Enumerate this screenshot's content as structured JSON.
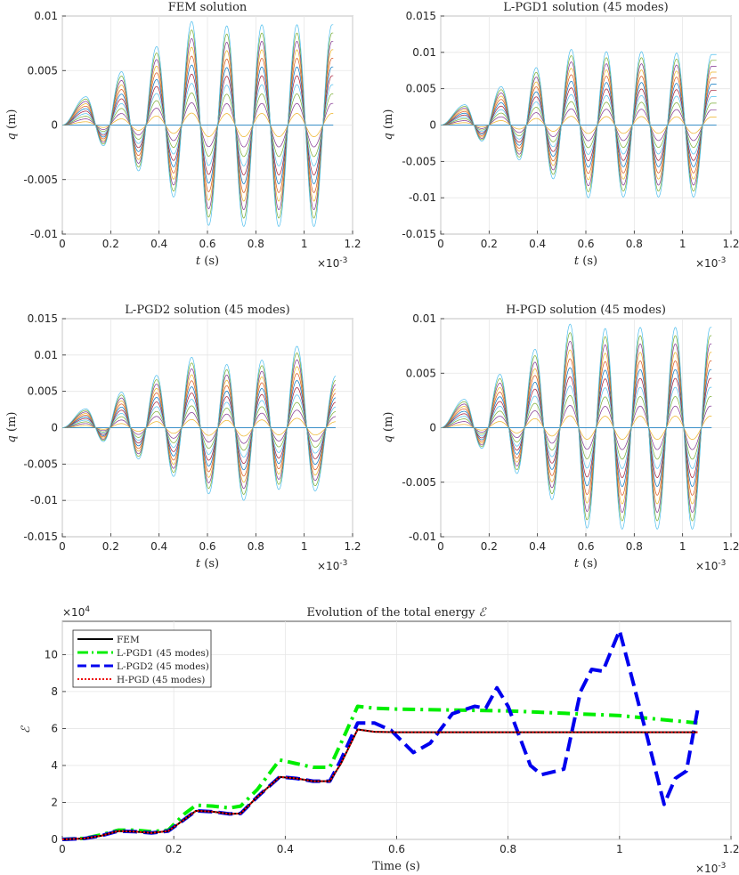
{
  "chart_data": [
    {
      "type": "line",
      "title": "FEM solution",
      "xlabel_var": "t",
      "xlabel_unit": "(s)",
      "ylabel_var": "q",
      "ylabel_unit": "(m)",
      "x_multiplier": "×10",
      "x_exponent": "-3",
      "xlim": [
        0,
        1.2
      ],
      "ylim": [
        -0.01,
        0.01
      ],
      "xticks": [
        0,
        0.2,
        0.4,
        0.6,
        0.8,
        1,
        1.2
      ],
      "yticks": [
        -0.01,
        -0.005,
        0,
        0.005,
        0.01
      ],
      "x_tick_labels": [
        "0",
        "0.2",
        "0.4",
        "0.6",
        "0.8",
        "1",
        "1.2"
      ],
      "y_tick_labels": [
        "-0.01",
        "-0.005",
        "0",
        "0.005",
        "0.01"
      ],
      "x_end": 1.12,
      "series_count": 12,
      "peaks": [
        {
          "t": 0.098,
          "q": 0.0026
        },
        {
          "t": 0.17,
          "q": -0.0019
        },
        {
          "t": 0.245,
          "q": 0.0049
        },
        {
          "t": 0.315,
          "q": -0.0042
        },
        {
          "t": 0.39,
          "q": 0.0072
        },
        {
          "t": 0.46,
          "q": -0.0066
        },
        {
          "t": 0.535,
          "q": 0.0095
        },
        {
          "t": 0.605,
          "q": -0.0092
        },
        {
          "t": 0.68,
          "q": 0.0091
        },
        {
          "t": 0.75,
          "q": -0.0093
        },
        {
          "t": 0.825,
          "q": 0.0092
        },
        {
          "t": 0.895,
          "q": -0.0093
        },
        {
          "t": 0.97,
          "q": 0.0092
        },
        {
          "t": 1.04,
          "q": -0.0093
        },
        {
          "t": 1.115,
          "q": 0.0092
        }
      ]
    },
    {
      "type": "line",
      "title": "L-PGD1 solution (45 modes)",
      "xlabel_var": "t",
      "xlabel_unit": "(s)",
      "ylabel_var": "q",
      "ylabel_unit": "(m)",
      "x_multiplier": "×10",
      "x_exponent": "-3",
      "xlim": [
        0,
        1.2
      ],
      "ylim": [
        -0.015,
        0.015
      ],
      "xticks": [
        0,
        0.2,
        0.4,
        0.6,
        0.8,
        1,
        1.2
      ],
      "yticks": [
        -0.015,
        -0.01,
        -0.005,
        0,
        0.005,
        0.01,
        0.015
      ],
      "x_tick_labels": [
        "0",
        "0.2",
        "0.4",
        "0.6",
        "0.8",
        "1",
        "1.2"
      ],
      "y_tick_labels": [
        "-0.015",
        "-0.01",
        "-0.005",
        "0",
        "0.005",
        "0.01",
        "0.015"
      ],
      "x_end": 1.14,
      "series_count": 12,
      "peaks": [
        {
          "t": 0.1,
          "q": 0.0028
        },
        {
          "t": 0.17,
          "q": -0.0022
        },
        {
          "t": 0.25,
          "q": 0.0053
        },
        {
          "t": 0.325,
          "q": -0.0048
        },
        {
          "t": 0.395,
          "q": 0.0079
        },
        {
          "t": 0.465,
          "q": -0.0074
        },
        {
          "t": 0.54,
          "q": 0.0104
        },
        {
          "t": 0.61,
          "q": -0.01
        },
        {
          "t": 0.685,
          "q": 0.0101
        },
        {
          "t": 0.755,
          "q": -0.0099
        },
        {
          "t": 0.83,
          "q": 0.0101
        },
        {
          "t": 0.9,
          "q": -0.0099
        },
        {
          "t": 0.975,
          "q": 0.0099
        },
        {
          "t": 1.045,
          "q": -0.0099
        },
        {
          "t": 1.12,
          "q": 0.0097
        }
      ]
    },
    {
      "type": "line",
      "title": "L-PGD2 solution (45 modes)",
      "xlabel_var": "t",
      "xlabel_unit": "(s)",
      "ylabel_var": "q",
      "ylabel_unit": "(m)",
      "x_multiplier": "×10",
      "x_exponent": "-3",
      "xlim": [
        0,
        1.2
      ],
      "ylim": [
        -0.015,
        0.015
      ],
      "xticks": [
        0,
        0.2,
        0.4,
        0.6,
        0.8,
        1,
        1.2
      ],
      "yticks": [
        -0.015,
        -0.01,
        -0.005,
        0,
        0.005,
        0.01,
        0.015
      ],
      "x_tick_labels": [
        "0",
        "0.2",
        "0.4",
        "0.6",
        "0.8",
        "1",
        "1.2"
      ],
      "y_tick_labels": [
        "-0.015",
        "-0.01",
        "-0.005",
        "0",
        "0.005",
        "0.01",
        "0.015"
      ],
      "x_end": 1.13,
      "series_count": 12,
      "peaks": [
        {
          "t": 0.098,
          "q": 0.0026
        },
        {
          "t": 0.17,
          "q": -0.0019
        },
        {
          "t": 0.245,
          "q": 0.0049
        },
        {
          "t": 0.315,
          "q": -0.0043
        },
        {
          "t": 0.39,
          "q": 0.0072
        },
        {
          "t": 0.46,
          "q": -0.0067
        },
        {
          "t": 0.535,
          "q": 0.0097
        },
        {
          "t": 0.605,
          "q": -0.0091
        },
        {
          "t": 0.68,
          "q": 0.0087
        },
        {
          "t": 0.75,
          "q": -0.01
        },
        {
          "t": 0.825,
          "q": 0.0093
        },
        {
          "t": 0.895,
          "q": -0.0085
        },
        {
          "t": 0.97,
          "q": 0.0112
        },
        {
          "t": 1.045,
          "q": -0.0087
        },
        {
          "t": 1.13,
          "q": 0.0071
        }
      ]
    },
    {
      "type": "line",
      "title": "H-PGD solution (45 modes)",
      "xlabel_var": "t",
      "xlabel_unit": "(s)",
      "ylabel_var": "q",
      "ylabel_unit": "(m)",
      "x_multiplier": "×10",
      "x_exponent": "-3",
      "xlim": [
        0,
        1.2
      ],
      "ylim": [
        -0.01,
        0.01
      ],
      "xticks": [
        0,
        0.2,
        0.4,
        0.6,
        0.8,
        1,
        1.2
      ],
      "yticks": [
        -0.01,
        -0.005,
        0,
        0.005,
        0.01
      ],
      "x_tick_labels": [
        "0",
        "0.2",
        "0.4",
        "0.6",
        "0.8",
        "1",
        "1.2"
      ],
      "y_tick_labels": [
        "-0.01",
        "-0.005",
        "0",
        "0.005",
        "0.01"
      ],
      "x_end": 1.12,
      "series_count": 12,
      "peaks": [
        {
          "t": 0.098,
          "q": 0.0026
        },
        {
          "t": 0.17,
          "q": -0.0019
        },
        {
          "t": 0.245,
          "q": 0.0049
        },
        {
          "t": 0.315,
          "q": -0.0042
        },
        {
          "t": 0.39,
          "q": 0.0072
        },
        {
          "t": 0.46,
          "q": -0.0066
        },
        {
          "t": 0.535,
          "q": 0.0095
        },
        {
          "t": 0.605,
          "q": -0.0092
        },
        {
          "t": 0.68,
          "q": 0.0091
        },
        {
          "t": 0.75,
          "q": -0.0093
        },
        {
          "t": 0.825,
          "q": 0.0092
        },
        {
          "t": 0.895,
          "q": -0.0093
        },
        {
          "t": 0.97,
          "q": 0.0092
        },
        {
          "t": 1.04,
          "q": -0.0093
        },
        {
          "t": 1.115,
          "q": 0.0092
        }
      ]
    },
    {
      "type": "line",
      "title_prefix": "Evolution of the total energy",
      "title_symbol": "ℰ",
      "xlabel": "Time (s)",
      "ylabel": "ℰ",
      "x_multiplier": "×10",
      "x_exponent": "-3",
      "y_multiplier": "×10",
      "y_exponent": "4",
      "xlim": [
        0,
        1.2
      ],
      "ylim": [
        0,
        11.8
      ],
      "xticks": [
        0,
        0.2,
        0.4,
        0.6,
        0.8,
        1,
        1.2
      ],
      "yticks": [
        0,
        2,
        4,
        6,
        8,
        10
      ],
      "x_tick_labels": [
        "0",
        "0.2",
        "0.4",
        "0.6",
        "0.8",
        "1",
        "1.2"
      ],
      "y_tick_labels": [
        "0",
        "2",
        "4",
        "6",
        "8",
        "10"
      ],
      "series": [
        {
          "name": "FEM",
          "color": "#000000",
          "style": "solid",
          "points": [
            [
              0,
              0
            ],
            [
              0.04,
              0.05
            ],
            [
              0.07,
              0.2
            ],
            [
              0.1,
              0.45
            ],
            [
              0.13,
              0.42
            ],
            [
              0.16,
              0.35
            ],
            [
              0.19,
              0.45
            ],
            [
              0.22,
              1.1
            ],
            [
              0.24,
              1.55
            ],
            [
              0.27,
              1.5
            ],
            [
              0.3,
              1.38
            ],
            [
              0.32,
              1.4
            ],
            [
              0.35,
              2.3
            ],
            [
              0.39,
              3.38
            ],
            [
              0.42,
              3.3
            ],
            [
              0.45,
              3.15
            ],
            [
              0.48,
              3.15
            ],
            [
              0.5,
              4.1
            ],
            [
              0.53,
              5.95
            ],
            [
              0.56,
              5.82
            ],
            [
              0.6,
              5.8
            ],
            [
              1.14,
              5.8
            ]
          ]
        },
        {
          "name": "L-PGD1 (45 modes)",
          "color": "#00ee00",
          "style": "dashdot",
          "points": [
            [
              0,
              0
            ],
            [
              0.04,
              0.06
            ],
            [
              0.07,
              0.25
            ],
            [
              0.1,
              0.5
            ],
            [
              0.13,
              0.5
            ],
            [
              0.16,
              0.42
            ],
            [
              0.19,
              0.5
            ],
            [
              0.22,
              1.4
            ],
            [
              0.24,
              1.85
            ],
            [
              0.27,
              1.8
            ],
            [
              0.3,
              1.7
            ],
            [
              0.32,
              1.8
            ],
            [
              0.35,
              2.7
            ],
            [
              0.39,
              4.3
            ],
            [
              0.42,
              4.1
            ],
            [
              0.45,
              3.9
            ],
            [
              0.48,
              3.9
            ],
            [
              0.5,
              5.2
            ],
            [
              0.53,
              7.2
            ],
            [
              0.56,
              7.1
            ],
            [
              0.6,
              7.05
            ],
            [
              0.8,
              6.95
            ],
            [
              1.0,
              6.7
            ],
            [
              1.14,
              6.3
            ]
          ]
        },
        {
          "name": "L-PGD2 (45 modes)",
          "color": "#0000ee",
          "style": "dashed",
          "points": [
            [
              0,
              0
            ],
            [
              0.04,
              0.05
            ],
            [
              0.07,
              0.2
            ],
            [
              0.1,
              0.45
            ],
            [
              0.13,
              0.42
            ],
            [
              0.16,
              0.35
            ],
            [
              0.19,
              0.45
            ],
            [
              0.22,
              1.1
            ],
            [
              0.24,
              1.55
            ],
            [
              0.27,
              1.5
            ],
            [
              0.3,
              1.38
            ],
            [
              0.32,
              1.4
            ],
            [
              0.35,
              2.3
            ],
            [
              0.39,
              3.38
            ],
            [
              0.42,
              3.3
            ],
            [
              0.45,
              3.15
            ],
            [
              0.48,
              3.15
            ],
            [
              0.5,
              4.3
            ],
            [
              0.53,
              6.3
            ],
            [
              0.56,
              6.3
            ],
            [
              0.59,
              5.9
            ],
            [
              0.63,
              4.7
            ],
            [
              0.66,
              5.2
            ],
            [
              0.7,
              6.8
            ],
            [
              0.74,
              7.2
            ],
            [
              0.76,
              7.1
            ],
            [
              0.78,
              8.2
            ],
            [
              0.8,
              7.2
            ],
            [
              0.84,
              4.0
            ],
            [
              0.86,
              3.5
            ],
            [
              0.9,
              3.8
            ],
            [
              0.93,
              8.0
            ],
            [
              0.95,
              9.2
            ],
            [
              0.97,
              9.1
            ],
            [
              1.0,
              11.3
            ],
            [
              1.02,
              9.0
            ],
            [
              1.05,
              5.5
            ],
            [
              1.08,
              1.9
            ],
            [
              1.1,
              3.3
            ],
            [
              1.12,
              3.7
            ],
            [
              1.14,
              7.0
            ]
          ]
        },
        {
          "name": "H-PGD (45 modes)",
          "color": "#ee0000",
          "style": "dotted",
          "points": [
            [
              0,
              0
            ],
            [
              0.04,
              0.05
            ],
            [
              0.07,
              0.2
            ],
            [
              0.1,
              0.45
            ],
            [
              0.13,
              0.42
            ],
            [
              0.16,
              0.35
            ],
            [
              0.19,
              0.45
            ],
            [
              0.22,
              1.1
            ],
            [
              0.24,
              1.55
            ],
            [
              0.27,
              1.5
            ],
            [
              0.3,
              1.38
            ],
            [
              0.32,
              1.4
            ],
            [
              0.35,
              2.3
            ],
            [
              0.39,
              3.38
            ],
            [
              0.42,
              3.3
            ],
            [
              0.45,
              3.15
            ],
            [
              0.48,
              3.15
            ],
            [
              0.5,
              4.1
            ],
            [
              0.53,
              5.95
            ],
            [
              0.56,
              5.82
            ],
            [
              0.6,
              5.8
            ],
            [
              1.14,
              5.8
            ]
          ]
        }
      ],
      "legend_location": "top-left"
    }
  ]
}
